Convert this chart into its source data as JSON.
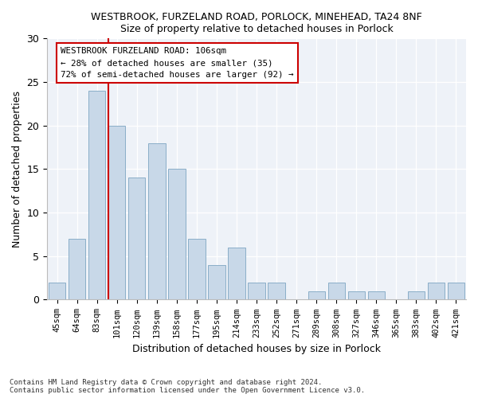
{
  "title": "WESTBROOK, FURZELAND ROAD, PORLOCK, MINEHEAD, TA24 8NF",
  "subtitle": "Size of property relative to detached houses in Porlock",
  "xlabel": "Distribution of detached houses by size in Porlock",
  "ylabel": "Number of detached properties",
  "bar_color": "#c8d8e8",
  "bar_edge_color": "#8aaec8",
  "categories": [
    "45sqm",
    "64sqm",
    "83sqm",
    "101sqm",
    "120sqm",
    "139sqm",
    "158sqm",
    "177sqm",
    "195sqm",
    "214sqm",
    "233sqm",
    "252sqm",
    "271sqm",
    "289sqm",
    "308sqm",
    "327sqm",
    "346sqm",
    "365sqm",
    "383sqm",
    "402sqm",
    "421sqm"
  ],
  "values": [
    2,
    7,
    24,
    20,
    14,
    18,
    15,
    7,
    4,
    6,
    2,
    2,
    0,
    1,
    2,
    1,
    1,
    0,
    1,
    2,
    2
  ],
  "vline_color": "#cc0000",
  "annotation_text": "WESTBROOK FURZELAND ROAD: 106sqm\n← 28% of detached houses are smaller (35)\n72% of semi-detached houses are larger (92) →",
  "annotation_box_color": "#ffffff",
  "annotation_box_edge": "#cc0000",
  "ylim": [
    0,
    30
  ],
  "yticks": [
    0,
    5,
    10,
    15,
    20,
    25,
    30
  ],
  "footer1": "Contains HM Land Registry data © Crown copyright and database right 2024.",
  "footer2": "Contains public sector information licensed under the Open Government Licence v3.0.",
  "bg_color": "#ffffff",
  "plot_bg_color": "#eef2f8"
}
